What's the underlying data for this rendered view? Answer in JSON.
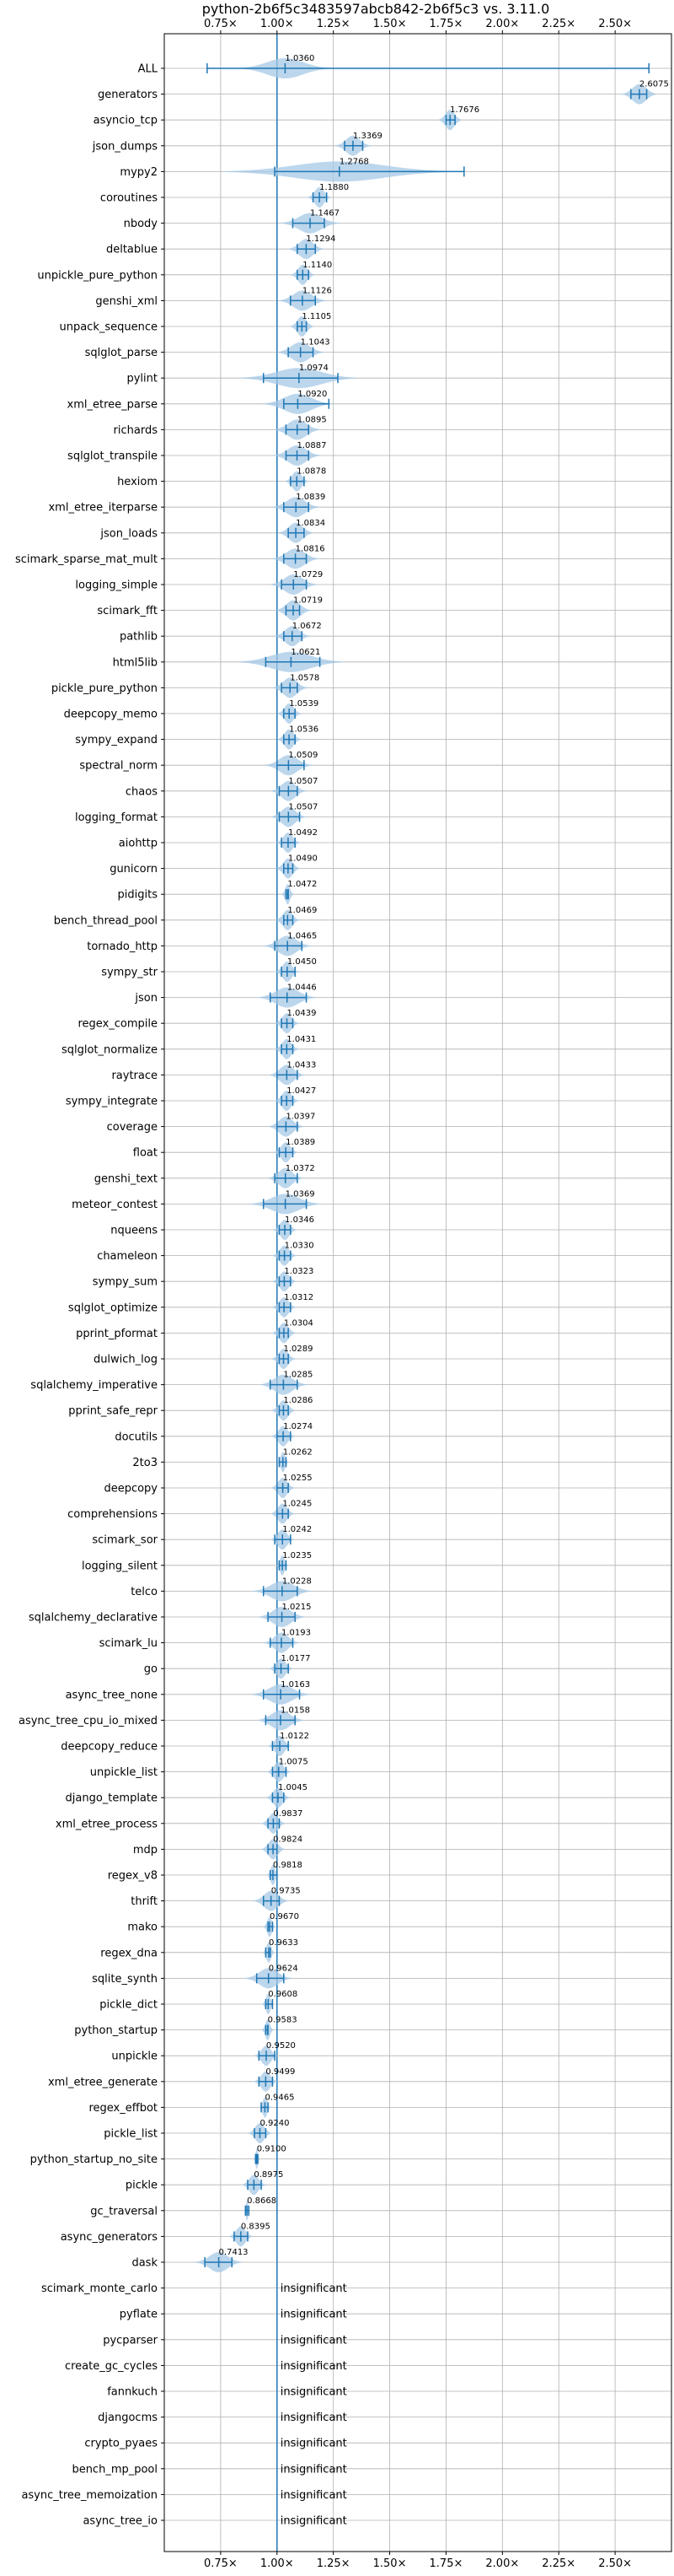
{
  "chart_data": {
    "type": "violin",
    "title": "python-2b6f5c3483597abcb842-2b6f5c3 vs. 3.11.0",
    "xlim": [
      0.5,
      2.75
    ],
    "baseline": 1.0,
    "ticks": [
      {
        "value": 0.75,
        "label": "0.75×"
      },
      {
        "value": 1.0,
        "label": "1.00×"
      },
      {
        "value": 1.25,
        "label": "1.25×"
      },
      {
        "value": 1.5,
        "label": "1.50×"
      },
      {
        "value": 1.75,
        "label": "1.75×"
      },
      {
        "value": 2.0,
        "label": "2.00×"
      },
      {
        "value": 2.25,
        "label": "2.25×"
      },
      {
        "value": 2.5,
        "label": "2.50×"
      }
    ],
    "colors": {
      "accent": "#1f77b4",
      "violin": "#a6c8e5",
      "grid": "#b0b0b0"
    },
    "insignificant_text": "insignificant",
    "benchmarks": [
      {
        "name": "ALL",
        "mean": 1.036,
        "label": "1.0360",
        "lo": 0.69,
        "hi": 2.65,
        "spread": 0.08
      },
      {
        "name": "generators",
        "mean": 2.6075,
        "label": "2.6075",
        "lo": 2.57,
        "hi": 2.64,
        "spread": 0.03
      },
      {
        "name": "asyncio_tcp",
        "mean": 1.7676,
        "label": "1.7676",
        "lo": 1.75,
        "hi": 1.79,
        "spread": 0.02
      },
      {
        "name": "json_dumps",
        "mean": 1.3369,
        "label": "1.3369",
        "lo": 1.3,
        "hi": 1.38,
        "spread": 0.03
      },
      {
        "name": "mypy2",
        "mean": 1.2768,
        "label": "1.2768",
        "lo": 0.99,
        "hi": 1.83,
        "spread": 0.2
      },
      {
        "name": "coroutines",
        "mean": 1.188,
        "label": "1.1880",
        "lo": 1.16,
        "hi": 1.22,
        "spread": 0.02
      },
      {
        "name": "nbody",
        "mean": 1.1467,
        "label": "1.1467",
        "lo": 1.07,
        "hi": 1.21,
        "spread": 0.05
      },
      {
        "name": "deltablue",
        "mean": 1.1294,
        "label": "1.1294",
        "lo": 1.09,
        "hi": 1.17,
        "spread": 0.03
      },
      {
        "name": "unpickle_pure_python",
        "mean": 1.114,
        "label": "1.1140",
        "lo": 1.09,
        "hi": 1.14,
        "spread": 0.02
      },
      {
        "name": "genshi_xml",
        "mean": 1.1126,
        "label": "1.1126",
        "lo": 1.06,
        "hi": 1.17,
        "spread": 0.04
      },
      {
        "name": "unpack_sequence",
        "mean": 1.1105,
        "label": "1.1105",
        "lo": 1.09,
        "hi": 1.13,
        "spread": 0.02
      },
      {
        "name": "sqlglot_parse",
        "mean": 1.1043,
        "label": "1.1043",
        "lo": 1.05,
        "hi": 1.16,
        "spread": 0.04
      },
      {
        "name": "pylint",
        "mean": 1.0974,
        "label": "1.0974",
        "lo": 0.94,
        "hi": 1.27,
        "spread": 0.1
      },
      {
        "name": "xml_etree_parse",
        "mean": 1.092,
        "label": "1.0920",
        "lo": 1.03,
        "hi": 1.23,
        "spread": 0.06
      },
      {
        "name": "richards",
        "mean": 1.0895,
        "label": "1.0895",
        "lo": 1.04,
        "hi": 1.14,
        "spread": 0.04
      },
      {
        "name": "sqlglot_transpile",
        "mean": 1.0887,
        "label": "1.0887",
        "lo": 1.04,
        "hi": 1.14,
        "spread": 0.04
      },
      {
        "name": "hexiom",
        "mean": 1.0878,
        "label": "1.0878",
        "lo": 1.06,
        "hi": 1.12,
        "spread": 0.02
      },
      {
        "name": "xml_etree_iterparse",
        "mean": 1.0839,
        "label": "1.0839",
        "lo": 1.03,
        "hi": 1.14,
        "spread": 0.04
      },
      {
        "name": "json_loads",
        "mean": 1.0834,
        "label": "1.0834",
        "lo": 1.05,
        "hi": 1.12,
        "spread": 0.03
      },
      {
        "name": "scimark_sparse_mat_mult",
        "mean": 1.0816,
        "label": "1.0816",
        "lo": 1.03,
        "hi": 1.13,
        "spread": 0.04
      },
      {
        "name": "logging_simple",
        "mean": 1.0729,
        "label": "1.0729",
        "lo": 1.02,
        "hi": 1.13,
        "spread": 0.04
      },
      {
        "name": "scimark_fft",
        "mean": 1.0719,
        "label": "1.0719",
        "lo": 1.04,
        "hi": 1.1,
        "spread": 0.03
      },
      {
        "name": "pathlib",
        "mean": 1.0672,
        "label": "1.0672",
        "lo": 1.03,
        "hi": 1.11,
        "spread": 0.03
      },
      {
        "name": "html5lib",
        "mean": 1.0621,
        "label": "1.0621",
        "lo": 0.95,
        "hi": 1.19,
        "spread": 0.09
      },
      {
        "name": "pickle_pure_python",
        "mean": 1.0578,
        "label": "1.0578",
        "lo": 1.02,
        "hi": 1.09,
        "spread": 0.03
      },
      {
        "name": "deepcopy_memo",
        "mean": 1.0539,
        "label": "1.0539",
        "lo": 1.03,
        "hi": 1.08,
        "spread": 0.02
      },
      {
        "name": "sympy_expand",
        "mean": 1.0536,
        "label": "1.0536",
        "lo": 1.03,
        "hi": 1.08,
        "spread": 0.02
      },
      {
        "name": "spectral_norm",
        "mean": 1.0509,
        "label": "1.0509",
        "lo": 1.0,
        "hi": 1.12,
        "spread": 0.04
      },
      {
        "name": "chaos",
        "mean": 1.0507,
        "label": "1.0507",
        "lo": 1.01,
        "hi": 1.09,
        "spread": 0.03
      },
      {
        "name": "logging_format",
        "mean": 1.0507,
        "label": "1.0507",
        "lo": 1.01,
        "hi": 1.1,
        "spread": 0.03
      },
      {
        "name": "aiohttp",
        "mean": 1.0492,
        "label": "1.0492",
        "lo": 1.02,
        "hi": 1.08,
        "spread": 0.02
      },
      {
        "name": "gunicorn",
        "mean": 1.049,
        "label": "1.0490",
        "lo": 1.03,
        "hi": 1.07,
        "spread": 0.02
      },
      {
        "name": "pidigits",
        "mean": 1.0472,
        "label": "1.0472",
        "lo": 1.04,
        "hi": 1.05,
        "spread": 0.01
      },
      {
        "name": "bench_thread_pool",
        "mean": 1.0469,
        "label": "1.0469",
        "lo": 1.03,
        "hi": 1.07,
        "spread": 0.02
      },
      {
        "name": "tornado_http",
        "mean": 1.0465,
        "label": "1.0465",
        "lo": 0.99,
        "hi": 1.11,
        "spread": 0.04
      },
      {
        "name": "sympy_str",
        "mean": 1.045,
        "label": "1.0450",
        "lo": 1.02,
        "hi": 1.08,
        "spread": 0.02
      },
      {
        "name": "json",
        "mean": 1.0446,
        "label": "1.0446",
        "lo": 0.97,
        "hi": 1.13,
        "spread": 0.05
      },
      {
        "name": "regex_compile",
        "mean": 1.0439,
        "label": "1.0439",
        "lo": 1.02,
        "hi": 1.07,
        "spread": 0.02
      },
      {
        "name": "sqlglot_normalize",
        "mean": 1.0431,
        "label": "1.0431",
        "lo": 1.02,
        "hi": 1.07,
        "spread": 0.02
      },
      {
        "name": "raytrace",
        "mean": 1.0433,
        "label": "1.0433",
        "lo": 1.0,
        "hi": 1.09,
        "spread": 0.03
      },
      {
        "name": "sympy_integrate",
        "mean": 1.0427,
        "label": "1.0427",
        "lo": 1.02,
        "hi": 1.07,
        "spread": 0.02
      },
      {
        "name": "coverage",
        "mean": 1.0397,
        "label": "1.0397",
        "lo": 1.0,
        "hi": 1.09,
        "spread": 0.03
      },
      {
        "name": "float",
        "mean": 1.0389,
        "label": "1.0389",
        "lo": 1.01,
        "hi": 1.07,
        "spread": 0.02
      },
      {
        "name": "genshi_text",
        "mean": 1.0372,
        "label": "1.0372",
        "lo": 0.99,
        "hi": 1.09,
        "spread": 0.03
      },
      {
        "name": "meteor_contest",
        "mean": 1.0369,
        "label": "1.0369",
        "lo": 0.94,
        "hi": 1.13,
        "spread": 0.06
      },
      {
        "name": "nqueens",
        "mean": 1.0346,
        "label": "1.0346",
        "lo": 1.01,
        "hi": 1.06,
        "spread": 0.02
      },
      {
        "name": "chameleon",
        "mean": 1.033,
        "label": "1.0330",
        "lo": 1.01,
        "hi": 1.06,
        "spread": 0.02
      },
      {
        "name": "sympy_sum",
        "mean": 1.0323,
        "label": "1.0323",
        "lo": 1.01,
        "hi": 1.06,
        "spread": 0.02
      },
      {
        "name": "sqlglot_optimize",
        "mean": 1.0312,
        "label": "1.0312",
        "lo": 1.01,
        "hi": 1.06,
        "spread": 0.02
      },
      {
        "name": "pprint_pformat",
        "mean": 1.0304,
        "label": "1.0304",
        "lo": 1.01,
        "hi": 1.05,
        "spread": 0.02
      },
      {
        "name": "dulwich_log",
        "mean": 1.0289,
        "label": "1.0289",
        "lo": 1.01,
        "hi": 1.05,
        "spread": 0.02
      },
      {
        "name": "sqlalchemy_imperative",
        "mean": 1.0285,
        "label": "1.0285",
        "lo": 0.97,
        "hi": 1.09,
        "spread": 0.04
      },
      {
        "name": "pprint_safe_repr",
        "mean": 1.0286,
        "label": "1.0286",
        "lo": 1.01,
        "hi": 1.05,
        "spread": 0.02
      },
      {
        "name": "docutils",
        "mean": 1.0274,
        "label": "1.0274",
        "lo": 1.0,
        "hi": 1.06,
        "spread": 0.02
      },
      {
        "name": "2to3",
        "mean": 1.0262,
        "label": "1.0262",
        "lo": 1.01,
        "hi": 1.04,
        "spread": 0.01
      },
      {
        "name": "deepcopy",
        "mean": 1.0255,
        "label": "1.0255",
        "lo": 1.0,
        "hi": 1.05,
        "spread": 0.02
      },
      {
        "name": "comprehensions",
        "mean": 1.0245,
        "label": "1.0245",
        "lo": 1.0,
        "hi": 1.05,
        "spread": 0.02
      },
      {
        "name": "scimark_sor",
        "mean": 1.0242,
        "label": "1.0242",
        "lo": 0.99,
        "hi": 1.06,
        "spread": 0.02
      },
      {
        "name": "logging_silent",
        "mean": 1.0235,
        "label": "1.0235",
        "lo": 1.01,
        "hi": 1.04,
        "spread": 0.01
      },
      {
        "name": "telco",
        "mean": 1.0228,
        "label": "1.0228",
        "lo": 0.94,
        "hi": 1.09,
        "spread": 0.05
      },
      {
        "name": "sqlalchemy_declarative",
        "mean": 1.0215,
        "label": "1.0215",
        "lo": 0.96,
        "hi": 1.08,
        "spread": 0.04
      },
      {
        "name": "scimark_lu",
        "mean": 1.0193,
        "label": "1.0193",
        "lo": 0.97,
        "hi": 1.07,
        "spread": 0.03
      },
      {
        "name": "go",
        "mean": 1.0177,
        "label": "1.0177",
        "lo": 0.99,
        "hi": 1.05,
        "spread": 0.02
      },
      {
        "name": "async_tree_none",
        "mean": 1.0163,
        "label": "1.0163",
        "lo": 0.94,
        "hi": 1.1,
        "spread": 0.05
      },
      {
        "name": "async_tree_cpu_io_mixed",
        "mean": 1.0158,
        "label": "1.0158",
        "lo": 0.95,
        "hi": 1.08,
        "spread": 0.04
      },
      {
        "name": "deepcopy_reduce",
        "mean": 1.0122,
        "label": "1.0122",
        "lo": 0.98,
        "hi": 1.05,
        "spread": 0.02
      },
      {
        "name": "unpickle_list",
        "mean": 1.0075,
        "label": "1.0075",
        "lo": 0.98,
        "hi": 1.04,
        "spread": 0.02
      },
      {
        "name": "django_template",
        "mean": 1.0045,
        "label": "1.0045",
        "lo": 0.98,
        "hi": 1.03,
        "spread": 0.02
      },
      {
        "name": "xml_etree_process",
        "mean": 0.9837,
        "label": "0.9837",
        "lo": 0.96,
        "hi": 1.01,
        "spread": 0.02
      },
      {
        "name": "mdp",
        "mean": 0.9824,
        "label": "0.9824",
        "lo": 0.96,
        "hi": 1.0,
        "spread": 0.02
      },
      {
        "name": "regex_v8",
        "mean": 0.9818,
        "label": "0.9818",
        "lo": 0.97,
        "hi": 1.0,
        "spread": 0.01
      },
      {
        "name": "thrift",
        "mean": 0.9735,
        "label": "0.9735",
        "lo": 0.94,
        "hi": 1.01,
        "spread": 0.03
      },
      {
        "name": "mako",
        "mean": 0.967,
        "label": "0.9670",
        "lo": 0.96,
        "hi": 0.98,
        "spread": 0.01
      },
      {
        "name": "regex_dna",
        "mean": 0.9633,
        "label": "0.9633",
        "lo": 0.95,
        "hi": 0.97,
        "spread": 0.01
      },
      {
        "name": "sqlite_synth",
        "mean": 0.9624,
        "label": "0.9624",
        "lo": 0.91,
        "hi": 1.03,
        "spread": 0.04
      },
      {
        "name": "pickle_dict",
        "mean": 0.9608,
        "label": "0.9608",
        "lo": 0.95,
        "hi": 0.98,
        "spread": 0.01
      },
      {
        "name": "python_startup",
        "mean": 0.9583,
        "label": "0.9583",
        "lo": 0.95,
        "hi": 0.96,
        "spread": 0.01
      },
      {
        "name": "unpickle",
        "mean": 0.952,
        "label": "0.9520",
        "lo": 0.92,
        "hi": 0.99,
        "spread": 0.02
      },
      {
        "name": "xml_etree_generate",
        "mean": 0.9499,
        "label": "0.9499",
        "lo": 0.92,
        "hi": 0.98,
        "spread": 0.02
      },
      {
        "name": "regex_effbot",
        "mean": 0.9465,
        "label": "0.9465",
        "lo": 0.93,
        "hi": 0.96,
        "spread": 0.01
      },
      {
        "name": "pickle_list",
        "mean": 0.924,
        "label": "0.9240",
        "lo": 0.9,
        "hi": 0.95,
        "spread": 0.02
      },
      {
        "name": "python_startup_no_site",
        "mean": 0.91,
        "label": "0.9100",
        "lo": 0.905,
        "hi": 0.915,
        "spread": 0.005
      },
      {
        "name": "pickle",
        "mean": 0.8975,
        "label": "0.8975",
        "lo": 0.87,
        "hi": 0.93,
        "spread": 0.02
      },
      {
        "name": "gc_traversal",
        "mean": 0.8668,
        "label": "0.8668",
        "lo": 0.86,
        "hi": 0.875,
        "spread": 0.005
      },
      {
        "name": "async_generators",
        "mean": 0.8395,
        "label": "0.8395",
        "lo": 0.81,
        "hi": 0.87,
        "spread": 0.02
      },
      {
        "name": "dask",
        "mean": 0.7413,
        "label": "0.7413",
        "lo": 0.68,
        "hi": 0.8,
        "spread": 0.04
      },
      {
        "name": "scimark_monte_carlo",
        "insignificant": true
      },
      {
        "name": "pyflate",
        "insignificant": true
      },
      {
        "name": "pycparser",
        "insignificant": true
      },
      {
        "name": "create_gc_cycles",
        "insignificant": true
      },
      {
        "name": "fannkuch",
        "insignificant": true
      },
      {
        "name": "djangocms",
        "insignificant": true
      },
      {
        "name": "crypto_pyaes",
        "insignificant": true
      },
      {
        "name": "bench_mp_pool",
        "insignificant": true
      },
      {
        "name": "async_tree_memoization",
        "insignificant": true
      },
      {
        "name": "async_tree_io",
        "insignificant": true
      }
    ]
  }
}
